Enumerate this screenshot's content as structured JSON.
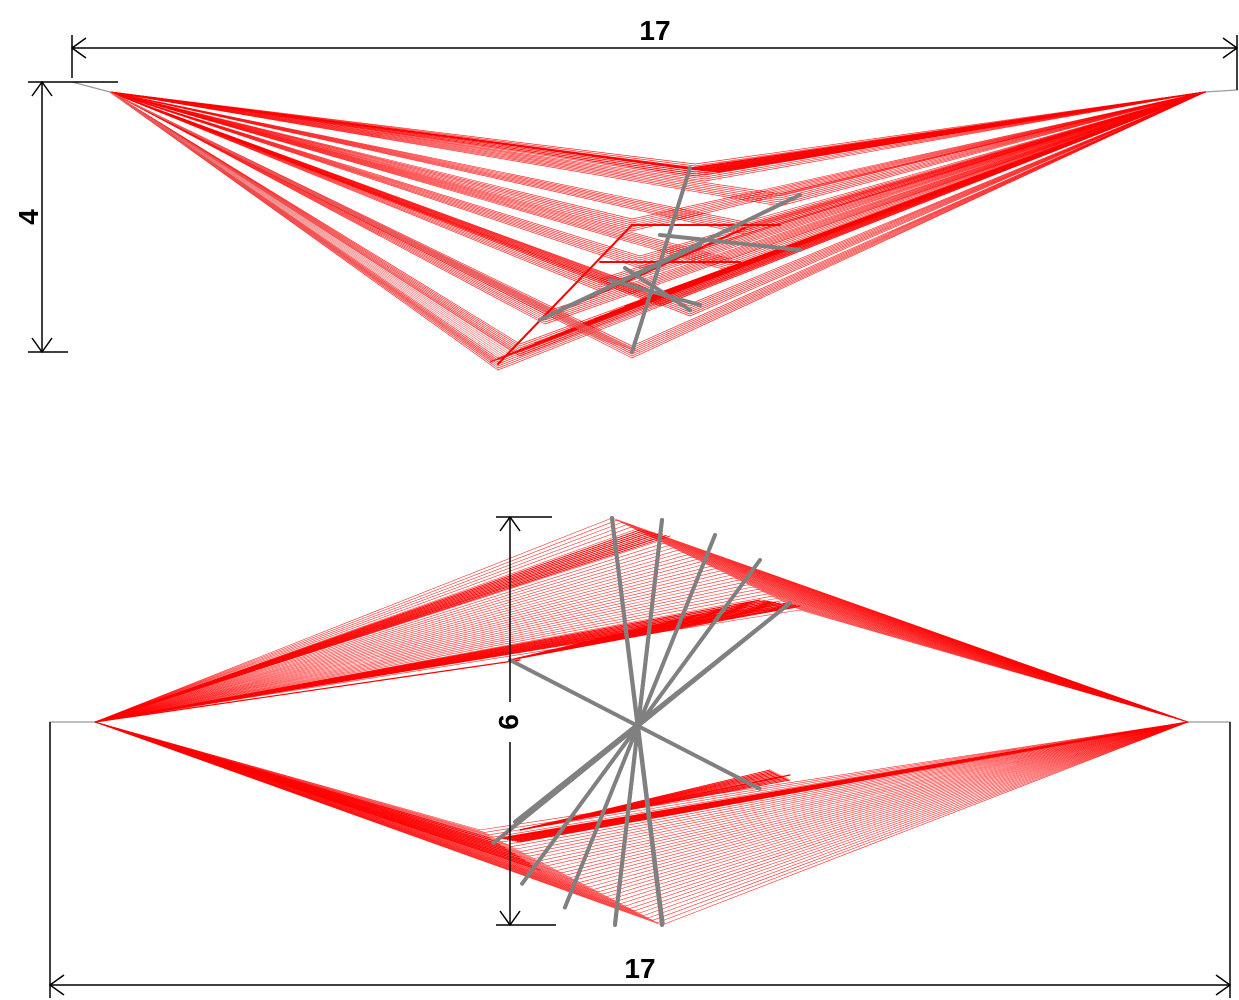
{
  "colors": {
    "cable": "#ff0000",
    "cable_light": "#e85a5a",
    "strut": "#808080",
    "dimension": "#000000",
    "background": "#ffffff"
  },
  "top_view": {
    "span_label": "17",
    "depth_label": "4"
  },
  "bottom_view": {
    "height_label": "6",
    "span_label": "17"
  }
}
